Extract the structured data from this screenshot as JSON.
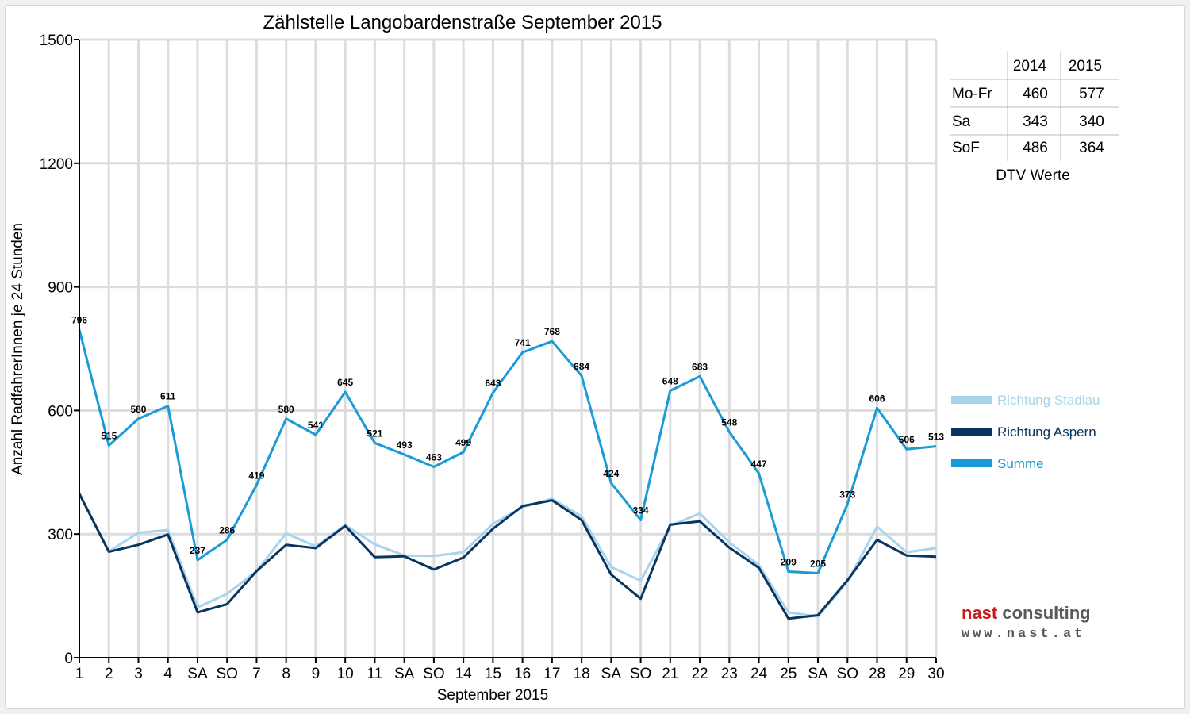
{
  "chart_data": {
    "type": "line",
    "title": "Zählstelle Langobardenstraße September 2015",
    "xlabel": "September 2015",
    "ylabel": "Anzahl RadfahrerInnen je 24 Stunden",
    "ylim": [
      0,
      1500
    ],
    "yticks": [
      0,
      300,
      600,
      900,
      1200,
      1500
    ],
    "grid": true,
    "categories": [
      "1",
      "2",
      "3",
      "4",
      "SA",
      "SO",
      "7",
      "8",
      "9",
      "10",
      "11",
      "SA",
      "SO",
      "14",
      "15",
      "16",
      "17",
      "18",
      "SA",
      "SO",
      "21",
      "22",
      "23",
      "24",
      "25",
      "SA",
      "SO",
      "28",
      "29",
      "30"
    ],
    "sunday_color": "#ff0000",
    "series": [
      {
        "name": "Richtung Stadlau",
        "color": "#a8d4ec",
        "values": [
          398,
          258,
          303,
          310,
          122,
          155,
          210,
          302,
          270,
          322,
          275,
          248,
          247,
          256,
          325,
          365,
          386,
          343,
          220,
          187,
          320,
          350,
          280,
          225,
          110,
          100,
          185,
          318,
          256,
          266
        ]
      },
      {
        "name": "Richtung Aspern",
        "color": "#0a3560",
        "values": [
          398,
          257,
          274,
          299,
          110,
          130,
          210,
          274,
          266,
          320,
          244,
          246,
          214,
          243,
          313,
          368,
          382,
          334,
          202,
          143,
          323,
          331,
          267,
          218,
          95,
          103,
          188,
          286,
          248,
          245
        ]
      },
      {
        "name": "Summe",
        "color": "#1a9ad6",
        "values": [
          796,
          515,
          580,
          611,
          237,
          286,
          419,
          580,
          541,
          645,
          521,
          493,
          463,
          499,
          643,
          741,
          768,
          684,
          424,
          334,
          648,
          683,
          548,
          447,
          209,
          205,
          373,
          606,
          506,
          513
        ]
      }
    ],
    "data_labels": [
      "796",
      "515",
      "580",
      "611",
      "237",
      "286",
      "419",
      "580",
      "541",
      "645",
      "521",
      "493",
      "463",
      "499",
      "643",
      "741",
      "768",
      "684",
      "424",
      "334",
      "648",
      "683",
      "548",
      "447",
      "209",
      "205",
      "373",
      "606",
      "506",
      "513"
    ],
    "legend_position": "right"
  },
  "dtv_table": {
    "headers": [
      "",
      "2014",
      "2015"
    ],
    "rows": [
      {
        "label": "Mo-Fr",
        "v2014": "460",
        "v2015": "577"
      },
      {
        "label": "Sa",
        "v2014": "343",
        "v2015": "340"
      },
      {
        "label": "SoF",
        "v2014": "486",
        "v2015": "364"
      }
    ],
    "caption": "DTV Werte"
  },
  "logo": {
    "name_prefix": "nast",
    "name_suffix": " consulting",
    "url": "www.nast.at"
  }
}
